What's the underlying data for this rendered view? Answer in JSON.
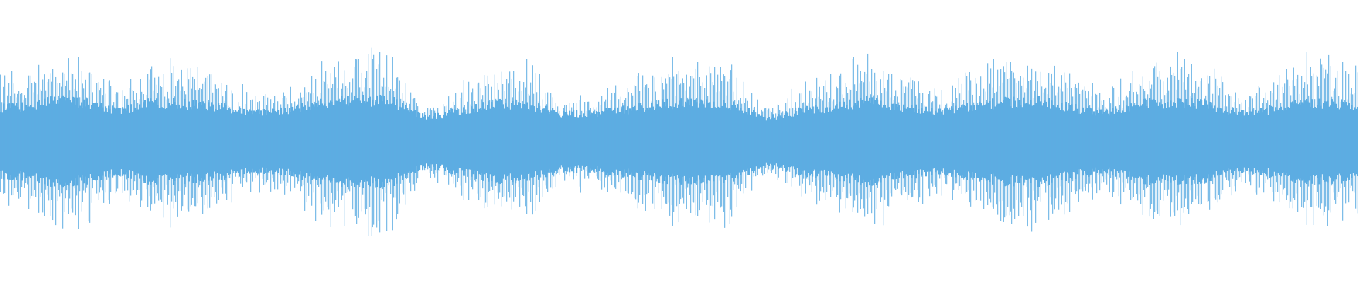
{
  "waveform": {
    "color": "#5dade2",
    "background": "#ffffff",
    "peak_envelope": [
      0.6,
      0.8,
      0.75,
      0.5,
      0.75,
      0.7,
      0.6,
      0.45,
      0.5,
      0.75,
      0.8,
      0.8,
      0.3,
      0.5,
      0.7,
      0.7,
      0.4,
      0.45,
      0.55,
      0.7,
      0.75,
      0.7,
      0.3,
      0.5,
      0.6,
      0.8,
      0.6,
      0.5,
      0.6,
      0.75,
      0.8,
      0.6,
      0.45,
      0.7,
      0.75,
      0.7,
      0.45,
      0.55,
      0.75,
      0.7
    ]
  }
}
